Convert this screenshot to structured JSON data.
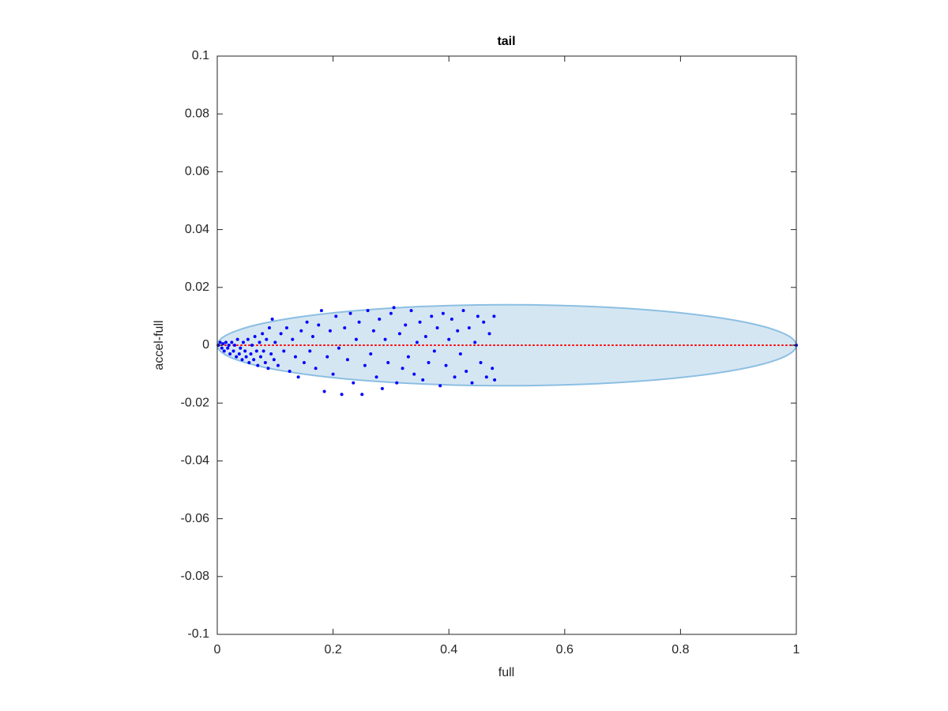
{
  "chart_data": {
    "type": "scatter",
    "title": "tail",
    "xlabel": "full",
    "ylabel": "accel-full",
    "xlim": [
      0,
      1
    ],
    "ylim": [
      -0.1,
      0.1
    ],
    "xticks": [
      0,
      0.2,
      0.4,
      0.6,
      0.8,
      1
    ],
    "yticks": [
      -0.1,
      -0.08,
      -0.06,
      -0.04,
      -0.02,
      0,
      0.02,
      0.04,
      0.06,
      0.08,
      0.1
    ],
    "ellipse": {
      "center": [
        0.5,
        0
      ],
      "radii": [
        0.5,
        0.014
      ],
      "color": "#d5e6f3",
      "edge": "#8cbfe2"
    },
    "line": {
      "x": [
        0,
        1
      ],
      "y": [
        0,
        0
      ],
      "color": "#ff0000"
    },
    "series": [
      {
        "color": "#0000ff",
        "x": [
          0.002,
          0.005,
          0.008,
          0.01,
          0.012,
          0.015,
          0.018,
          0.02,
          0.022,
          0.025,
          0.028,
          0.03,
          0.033,
          0.035,
          0.038,
          0.04,
          0.043,
          0.045,
          0.048,
          0.05,
          0.053,
          0.055,
          0.058,
          0.06,
          0.063,
          0.065,
          0.068,
          0.07,
          0.073,
          0.075,
          0.078,
          0.08,
          0.083,
          0.085,
          0.088,
          0.09,
          0.093,
          0.095,
          0.098,
          0.1,
          0.105,
          0.11,
          0.115,
          0.12,
          0.125,
          0.13,
          0.135,
          0.14,
          0.145,
          0.15,
          0.155,
          0.16,
          0.165,
          0.17,
          0.175,
          0.18,
          0.185,
          0.19,
          0.195,
          0.2,
          0.205,
          0.21,
          0.215,
          0.22,
          0.225,
          0.23,
          0.235,
          0.24,
          0.245,
          0.25,
          0.255,
          0.26,
          0.265,
          0.27,
          0.275,
          0.28,
          0.285,
          0.29,
          0.295,
          0.3,
          0.305,
          0.31,
          0.315,
          0.32,
          0.325,
          0.33,
          0.335,
          0.34,
          0.345,
          0.35,
          0.355,
          0.36,
          0.365,
          0.37,
          0.375,
          0.38,
          0.385,
          0.39,
          0.395,
          0.4,
          0.405,
          0.41,
          0.415,
          0.42,
          0.425,
          0.43,
          0.435,
          0.44,
          0.445,
          0.45,
          0.455,
          0.46,
          0.465,
          0.47,
          0.475,
          0.478,
          0.479,
          1
        ],
        "y": [
          0,
          0.001,
          -0.001,
          0.0005,
          -0.002,
          0.001,
          -0.001,
          0,
          -0.003,
          0.001,
          -0.002,
          0,
          -0.004,
          0.002,
          -0.003,
          -0.001,
          -0.005,
          0.001,
          -0.002,
          -0.004,
          0.002,
          -0.006,
          -0.003,
          0,
          -0.005,
          0.003,
          -0.002,
          -0.007,
          0.001,
          -0.004,
          0.004,
          -0.002,
          -0.006,
          0.002,
          -0.008,
          0.006,
          -0.003,
          0.009,
          -0.005,
          0.001,
          -0.007,
          0.004,
          -0.002,
          0.006,
          -0.009,
          0.002,
          -0.004,
          -0.011,
          0.005,
          -0.006,
          0.008,
          -0.002,
          0.003,
          -0.008,
          0.007,
          0.012,
          -0.016,
          -0.004,
          0.005,
          -0.01,
          0.01,
          -0.001,
          -0.017,
          0.006,
          -0.005,
          0.011,
          -0.013,
          0.002,
          0.008,
          -0.017,
          -0.007,
          0.012,
          -0.003,
          0.005,
          -0.011,
          0.009,
          -0.015,
          0.002,
          -0.006,
          0.011,
          0.013,
          -0.013,
          0.004,
          -0.008,
          0.007,
          -0.004,
          0.012,
          -0.01,
          0.001,
          0.008,
          -0.012,
          0.003,
          -0.006,
          0.01,
          -0.002,
          0.006,
          -0.014,
          0.011,
          -0.007,
          0.002,
          0.009,
          -0.011,
          0.005,
          -0.003,
          0.012,
          -0.009,
          0.006,
          -0.013,
          0.001,
          0.01,
          -0.006,
          0.008,
          -0.011,
          0.004,
          -0.008,
          0.01,
          -0.012,
          0
        ]
      }
    ]
  }
}
